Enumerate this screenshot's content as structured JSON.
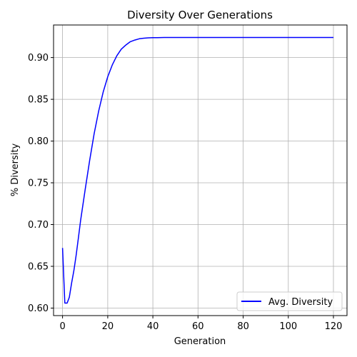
{
  "chart_data": {
    "type": "line",
    "title": "Diversity Over Generations",
    "xlabel": "Generation",
    "ylabel": "% Diversity",
    "xlim": [
      -4,
      126
    ],
    "ylim": [
      0.591,
      0.939
    ],
    "xticks": [
      0,
      20,
      40,
      60,
      80,
      100,
      120
    ],
    "yticks": [
      0.6,
      0.65,
      0.7,
      0.75,
      0.8,
      0.85,
      0.9
    ],
    "ytick_labels": [
      "0.60",
      "0.65",
      "0.70",
      "0.75",
      "0.80",
      "0.85",
      "0.90"
    ],
    "grid": true,
    "legend_position": "lower-right",
    "series": [
      {
        "name": "Avg. Diversity",
        "color": "#0000ff",
        "x": [
          0,
          1,
          2,
          3,
          4,
          5,
          6,
          7,
          8,
          10,
          12,
          14,
          16,
          18,
          20,
          22,
          24,
          26,
          28,
          30,
          32,
          34,
          36,
          38,
          40,
          42,
          45,
          50,
          60,
          70,
          80,
          90,
          100,
          110,
          120
        ],
        "y": [
          0.672,
          0.606,
          0.606,
          0.613,
          0.63,
          0.645,
          0.663,
          0.684,
          0.705,
          0.742,
          0.777,
          0.809,
          0.836,
          0.859,
          0.877,
          0.891,
          0.902,
          0.91,
          0.915,
          0.919,
          0.921,
          0.9225,
          0.9232,
          0.9236,
          0.9238,
          0.9239,
          0.924,
          0.924,
          0.924,
          0.924,
          0.924,
          0.924,
          0.924,
          0.924,
          0.924
        ]
      }
    ]
  }
}
